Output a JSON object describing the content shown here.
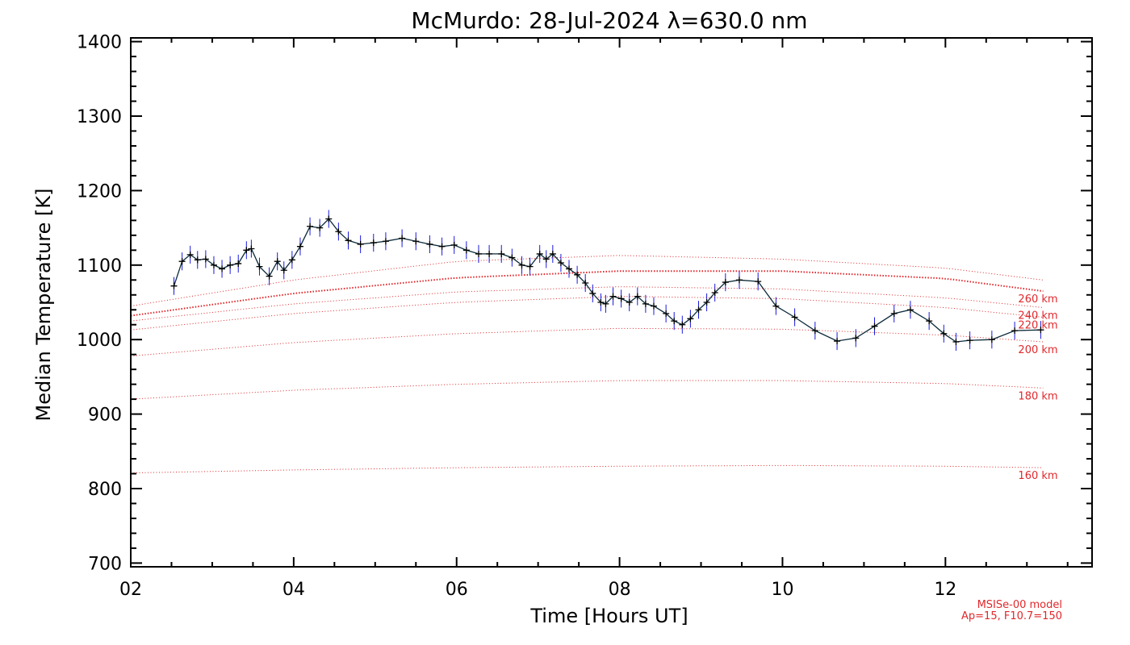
{
  "chart_data": {
    "type": "line",
    "title": "McMurdo: 28-Jul-2024 λ=630.0 nm",
    "xlabel": "Time [Hours UT]",
    "ylabel": "Median Temperature [K]",
    "xlim": [
      2,
      13.8
    ],
    "ylim": [
      695,
      1405
    ],
    "x_ticks": [
      2,
      4,
      6,
      8,
      10,
      12
    ],
    "x_tick_labels": [
      "02",
      "04",
      "06",
      "08",
      "10",
      "12"
    ],
    "y_ticks": [
      700,
      800,
      900,
      1000,
      1100,
      1200,
      1300,
      1400
    ],
    "y_tick_labels": [
      "700",
      "800",
      "900",
      "1000",
      "1100",
      "1200",
      "1300",
      "1400"
    ],
    "grid": false,
    "series": [
      {
        "color": "#0a2a3a",
        "errorbar_color": "#1a1adc",
        "error": 12,
        "x": [
          2.53,
          2.63,
          2.73,
          2.82,
          2.92,
          3.02,
          3.12,
          3.22,
          3.32,
          3.42,
          3.48,
          3.58,
          3.7,
          3.8,
          3.88,
          3.98,
          4.08,
          4.2,
          4.32,
          4.43,
          4.55,
          4.67,
          4.82,
          4.98,
          5.13,
          5.33,
          5.5,
          5.67,
          5.82,
          5.97,
          6.12,
          6.27,
          6.4,
          6.55,
          6.68,
          6.8,
          6.9,
          7.02,
          7.1,
          7.18,
          7.28,
          7.38,
          7.48,
          7.58,
          7.67,
          7.77,
          7.83,
          7.92,
          8.02,
          8.12,
          8.22,
          8.32,
          8.42,
          8.57,
          8.67,
          8.77,
          8.87,
          8.97,
          9.07,
          9.17,
          9.3,
          9.47,
          9.7,
          9.92,
          10.15,
          10.4,
          10.67,
          10.9,
          11.13,
          11.37,
          11.57,
          11.8,
          11.98,
          12.13,
          12.3,
          12.57,
          12.85,
          13.17
        ],
        "y": [
          1072,
          1105,
          1114,
          1107,
          1108,
          1100,
          1095,
          1100,
          1102,
          1120,
          1122,
          1098,
          1085,
          1105,
          1093,
          1107,
          1125,
          1152,
          1150,
          1162,
          1145,
          1133,
          1128,
          1130,
          1132,
          1136,
          1132,
          1128,
          1125,
          1127,
          1120,
          1115,
          1115,
          1115,
          1110,
          1100,
          1098,
          1115,
          1108,
          1115,
          1103,
          1095,
          1087,
          1076,
          1062,
          1050,
          1048,
          1058,
          1055,
          1050,
          1058,
          1048,
          1045,
          1035,
          1025,
          1020,
          1028,
          1040,
          1050,
          1063,
          1077,
          1080,
          1078,
          1045,
          1030,
          1012,
          998,
          1002,
          1018,
          1035,
          1040,
          1025,
          1008,
          997,
          999,
          1000,
          1012,
          1013
        ]
      }
    ],
    "model_curves": [
      {
        "label": "160 km",
        "x": [
          2,
          4,
          6,
          8,
          10,
          12,
          13.2
        ],
        "y": [
          821,
          825,
          828,
          830,
          831,
          830,
          828
        ],
        "style": "thin"
      },
      {
        "label": "180 km",
        "x": [
          2,
          4,
          6,
          8,
          10,
          12,
          13.2
        ],
        "y": [
          920,
          932,
          940,
          945,
          945,
          941,
          935
        ],
        "style": "thin"
      },
      {
        "label": "200 km",
        "x": [
          2,
          4,
          6,
          8,
          10,
          12,
          13.2
        ],
        "y": [
          978,
          996,
          1008,
          1015,
          1014,
          1006,
          997
        ],
        "style": "thin"
      },
      {
        "label": "220 km",
        "x": [
          2,
          4,
          6,
          8,
          10,
          12,
          13.2
        ],
        "y": [
          1013,
          1035,
          1050,
          1058,
          1055,
          1043,
          1030
        ],
        "style": "thin"
      },
      {
        "label": "240 km",
        "x": [
          2,
          4,
          6,
          8,
          10,
          12,
          13.2
        ],
        "y": [
          1025,
          1048,
          1064,
          1071,
          1068,
          1056,
          1043
        ],
        "style": "thin"
      },
      {
        "label": "260 km",
        "x": [
          2,
          4,
          6,
          8,
          10,
          12,
          13.2
        ],
        "y": [
          1032,
          1062,
          1083,
          1092,
          1092,
          1082,
          1065
        ],
        "style": "bold"
      },
      {
        "label": "",
        "x": [
          2,
          4,
          6,
          8,
          10,
          12,
          13.2
        ],
        "y": [
          1045,
          1080,
          1105,
          1113,
          1108,
          1096,
          1080
        ],
        "style": "thin"
      }
    ],
    "model_note": [
      "MSISe-00 model",
      "Ap=15, F10.7=150"
    ],
    "colors": {
      "data_line": "#0a2a3a",
      "error_bars": "#1a1adc",
      "model": "#e0282c",
      "axes": "#000000"
    }
  }
}
